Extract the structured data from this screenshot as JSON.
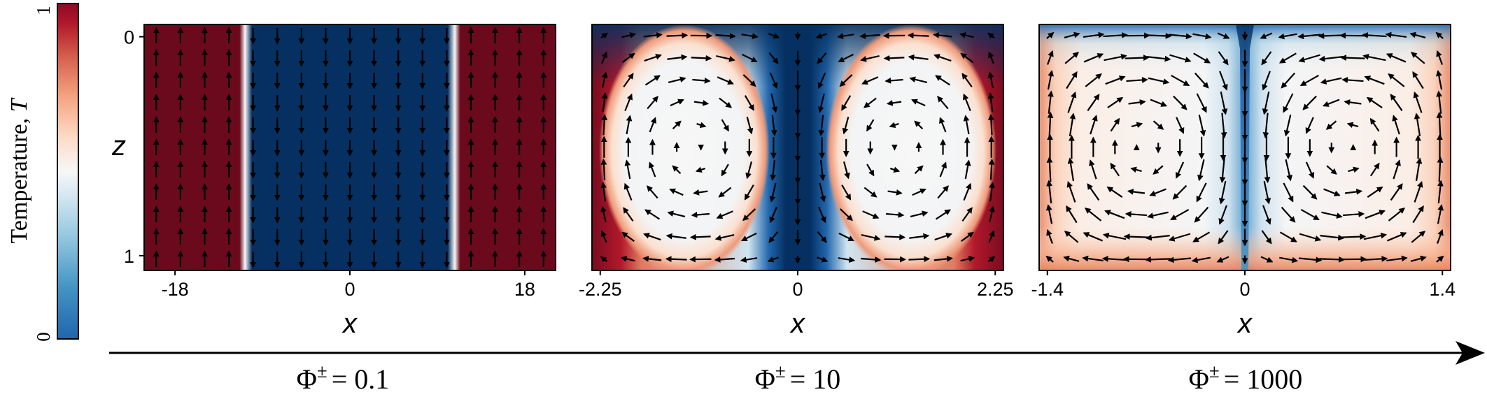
{
  "colorbar": {
    "label": "Temperature, T",
    "label_main": "Temperature, ",
    "label_var": "T",
    "min_label": "0",
    "max_label": "1",
    "colormap": "RdBu_r",
    "stops": [
      "#053061",
      "#2166ac",
      "#4393c3",
      "#92c5de",
      "#d1e5f0",
      "#f7f7f7",
      "#fddbc7",
      "#f4a582",
      "#d6604d",
      "#b2182b",
      "#67001f"
    ]
  },
  "arrow": {
    "phi_labels": [
      "Φ± = 0.1",
      "Φ± = 10",
      "Φ± = 1000"
    ],
    "phi_symbol": "Φ",
    "phi_sup": "±",
    "phi_values": [
      "= 0.1",
      "= 10",
      "= 1000"
    ]
  },
  "chart_data": [
    {
      "type": "heatmap",
      "title": "",
      "param": "Φ± = 0.1",
      "xlabel": "x",
      "ylabel": "z",
      "xlim": [
        -18,
        18
      ],
      "ylim": [
        1,
        0
      ],
      "x_ticks": [
        "-18",
        "0",
        "18"
      ],
      "y_ticks": [
        "0",
        "1"
      ],
      "field": "Temperature T (0–1) with velocity vectors",
      "description": "Hot (T≈1) columns at |x| > ~10 with upward flow; cold (T≈0) central column with downward flow; thin boundary layers at x≈±9"
    },
    {
      "type": "heatmap",
      "title": "",
      "param": "Φ± = 10",
      "xlabel": "x",
      "ylabel": "",
      "xlim": [
        -2.25,
        2.25
      ],
      "ylim": [
        1,
        0
      ],
      "x_ticks": [
        "-2.25",
        "0",
        "2.25"
      ],
      "y_ticks": [],
      "field": "Temperature T (0–1) with velocity vectors",
      "description": "Cold central plume descending at x≈0; two counter-rotating convection cells with near-uniform interior temperature; hot edges"
    },
    {
      "type": "heatmap",
      "title": "",
      "param": "Φ± = 1000",
      "xlabel": "x",
      "ylabel": "",
      "xlim": [
        -1.4,
        1.4
      ],
      "ylim": [
        1,
        0
      ],
      "x_ticks": [
        "-1.4",
        "0",
        "1.4"
      ],
      "y_ticks": [],
      "field": "Temperature T (0–1) with velocity vectors",
      "description": "Two rectangular convection cells; thin cold plume at x≈0; warm boundary layers along walls and bottom"
    }
  ]
}
